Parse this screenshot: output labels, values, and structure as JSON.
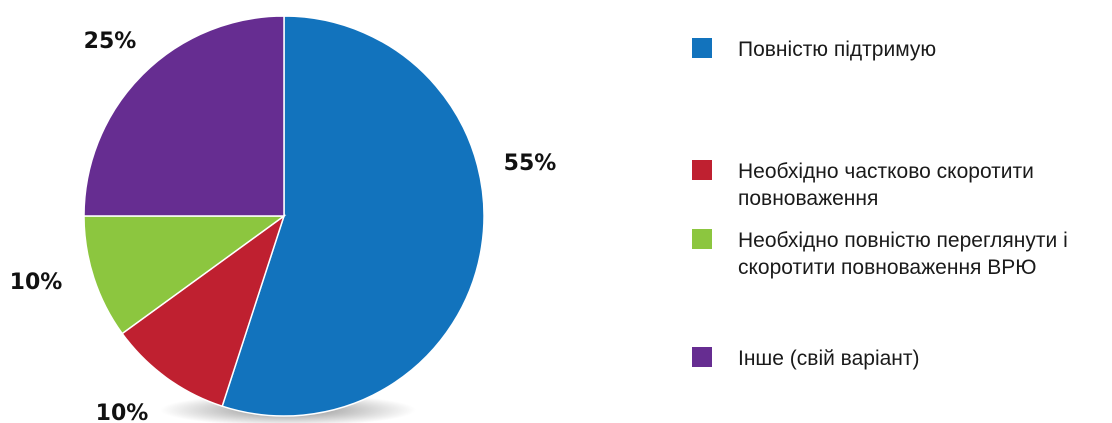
{
  "chart_data": {
    "type": "pie",
    "title": "",
    "start": "top",
    "direction": "clockwise",
    "slices": [
      {
        "label": "Повністю підтримую",
        "value": 55,
        "display": "55%",
        "color": "#1273bd"
      },
      {
        "label": "Необхідно частково скоротити повноваження",
        "value": 10,
        "display": "10%",
        "color": "#bf2030"
      },
      {
        "label": "Необхідно повністю переглянути і скоротити повноваження ВРЮ",
        "value": 10,
        "display": "10%",
        "color": "#8cc63f"
      },
      {
        "label": "Інше (свій варіант)",
        "value": 25,
        "display": "25%",
        "color": "#662d91"
      }
    ],
    "legend_position": "right"
  }
}
